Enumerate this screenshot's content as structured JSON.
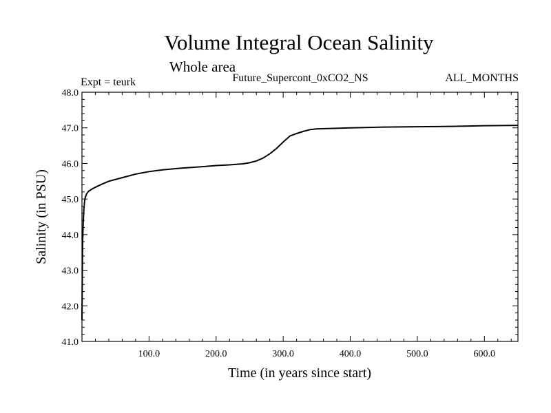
{
  "header": {
    "title": "Volume Integral Ocean Salinity",
    "subtitle": "Whole area",
    "expt": "Expt = teurk",
    "run_name": "Future_Supercont_0xCO2_NS",
    "months": "ALL_MONTHS"
  },
  "chart_data": {
    "type": "line",
    "title": "Volume Integral Ocean Salinity",
    "xlabel": "Time (in years since start)",
    "ylabel": "Salinity (in PSU)",
    "xlim": [
      0,
      650
    ],
    "ylim": [
      41.0,
      48.0
    ],
    "x_ticks": [
      100,
      200,
      300,
      400,
      500,
      600
    ],
    "x_tick_labels": [
      "100.0",
      "200.0",
      "300.0",
      "400.0",
      "500.0",
      "600.0"
    ],
    "y_ticks": [
      41,
      42,
      43,
      44,
      45,
      46,
      47,
      48
    ],
    "y_tick_labels": [
      "41.0",
      "42.0",
      "43.0",
      "44.0",
      "45.0",
      "46.0",
      "47.0",
      "48.0"
    ],
    "grid": false,
    "line_color": "#000000",
    "series": [
      {
        "x": [
          0,
          0.5,
          1,
          2,
          3,
          4,
          5,
          7,
          10,
          15,
          20,
          30,
          40,
          60,
          80,
          100,
          120,
          150,
          180,
          200,
          220,
          240,
          250,
          260,
          270,
          280,
          290,
          300,
          310,
          320,
          330,
          340,
          350,
          400,
          450,
          500,
          550,
          600,
          650
        ],
        "y": [
          41.6,
          42.8,
          43.8,
          44.4,
          44.75,
          44.95,
          45.05,
          45.15,
          45.22,
          45.28,
          45.33,
          45.42,
          45.5,
          45.6,
          45.7,
          45.77,
          45.82,
          45.87,
          45.91,
          45.94,
          45.96,
          45.99,
          46.02,
          46.07,
          46.15,
          46.27,
          46.42,
          46.6,
          46.77,
          46.84,
          46.9,
          46.95,
          46.97,
          47.0,
          47.02,
          47.03,
          47.04,
          47.06,
          47.07
        ]
      }
    ]
  }
}
